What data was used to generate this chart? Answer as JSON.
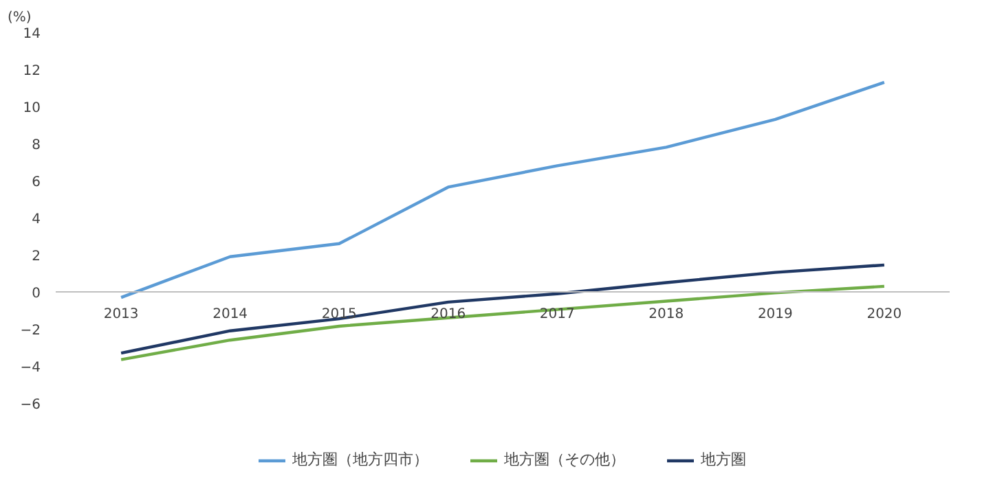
{
  "chart_data": {
    "type": "line",
    "ylabel": "(%)",
    "categories": [
      "2013",
      "2014",
      "2015",
      "2016",
      "2017",
      "2018",
      "2019",
      "2020"
    ],
    "series": [
      {
        "name": "地方圏（地方四市）",
        "color": "#5b9bd5",
        "values": [
          -0.3,
          1.9,
          2.6,
          5.65,
          6.8,
          7.8,
          9.3,
          11.3
        ]
      },
      {
        "name": "地方圏（その他）",
        "color": "#70ad47",
        "values": [
          -3.65,
          -2.6,
          -1.85,
          -1.4,
          -0.95,
          -0.5,
          -0.05,
          0.3
        ]
      },
      {
        "name": "地方圏",
        "color": "#203864",
        "values": [
          -3.3,
          -2.1,
          -1.45,
          -0.55,
          -0.1,
          0.5,
          1.05,
          1.45
        ]
      }
    ],
    "ylim": [
      -6,
      14
    ],
    "yticks": [
      -6,
      -4,
      -2,
      0,
      2,
      4,
      6,
      8,
      10,
      12,
      14
    ],
    "grid": false,
    "legend": "bottom",
    "marker": "none",
    "line_style": "solid"
  }
}
